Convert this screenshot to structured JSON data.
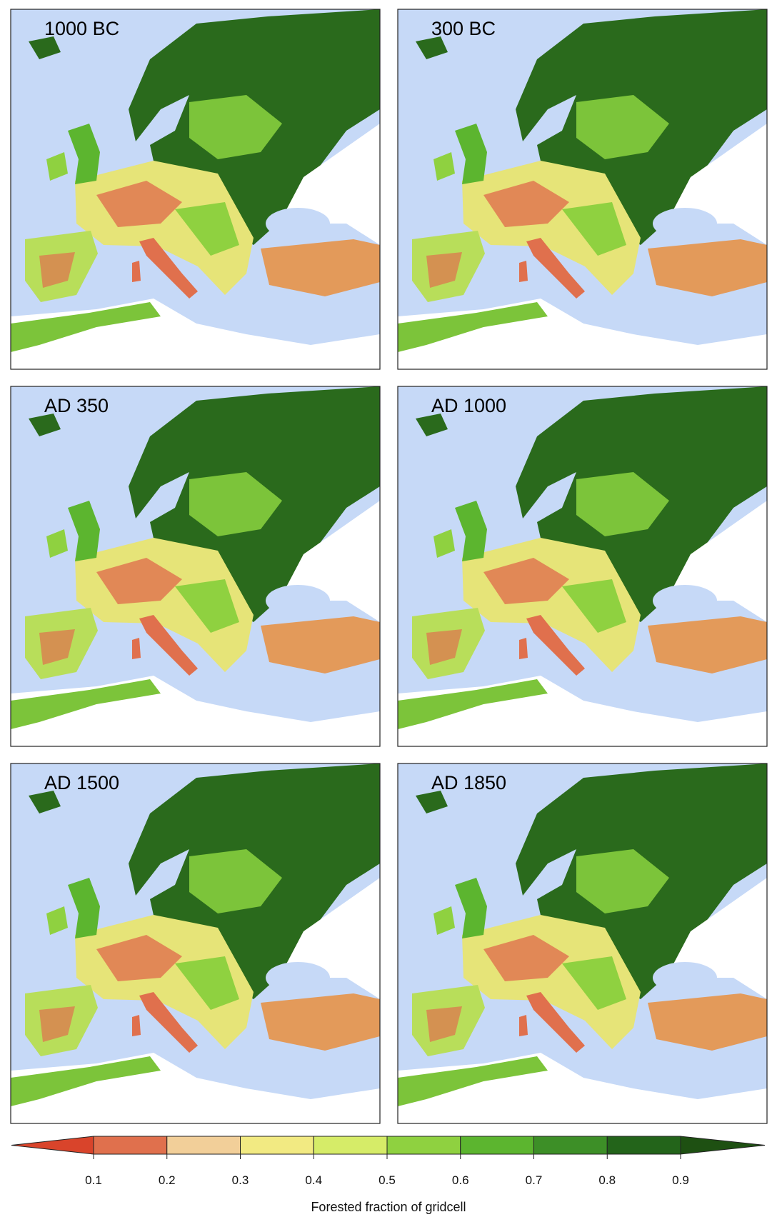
{
  "panels": [
    {
      "title": "1000 BC"
    },
    {
      "title": "300 BC"
    },
    {
      "title": "AD 350"
    },
    {
      "title": "AD 1000"
    },
    {
      "title": "AD 1500"
    },
    {
      "title": "AD 1850"
    }
  ],
  "colorbar": {
    "label": "Forested fraction of gridcell",
    "ticks": [
      0.1,
      0.2,
      0.3,
      0.4,
      0.5,
      0.6,
      0.7,
      0.8,
      0.9
    ],
    "colors": [
      "#d9442b",
      "#e0704d",
      "#f2cf99",
      "#f2ea82",
      "#d6ec68",
      "#8fd140",
      "#5cb52f",
      "#3d8f27",
      "#23641a",
      "#1e5012"
    ]
  }
}
